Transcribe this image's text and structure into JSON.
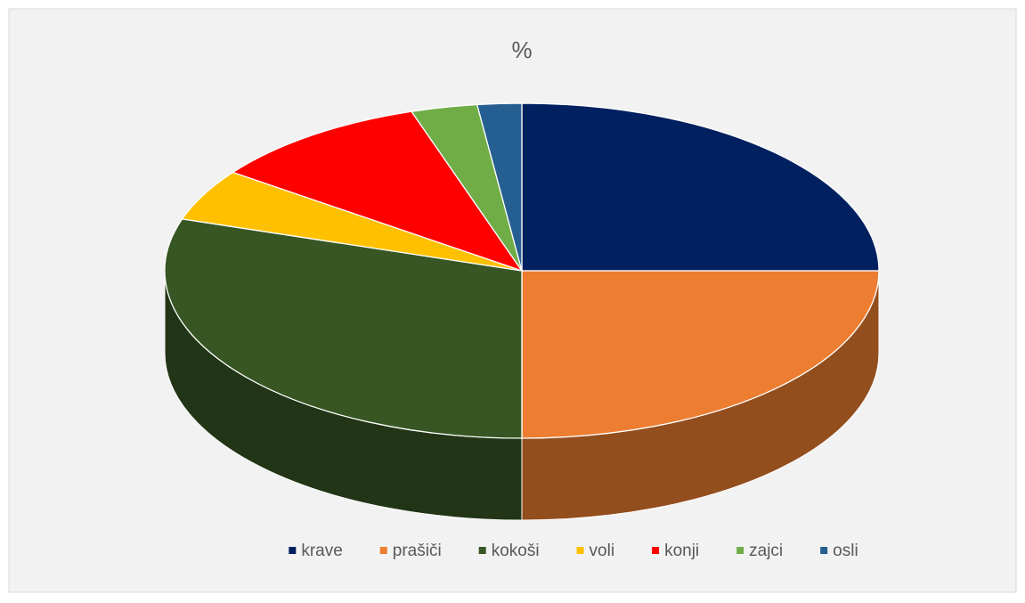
{
  "chart_data": {
    "type": "pie",
    "title": "%",
    "categories": [
      "krave",
      "prašiči",
      "kokoši",
      "voli",
      "konji",
      "zajci",
      "osli"
    ],
    "values": [
      25,
      25,
      30,
      5,
      10,
      3,
      2
    ],
    "colors": [
      "#002060",
      "#ed7d31",
      "#375623",
      "#ffc000",
      "#ff0000",
      "#70ad47",
      "#255e91"
    ],
    "legend": "bottom"
  }
}
